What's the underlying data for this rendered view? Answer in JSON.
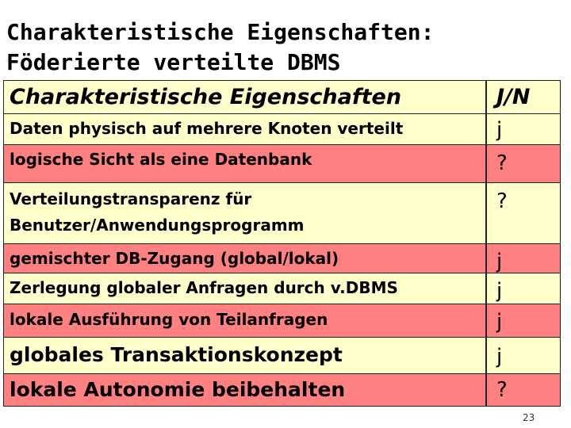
{
  "slide": {
    "title_line1": "Charakteristische Eigenschaften:",
    "title_line2": "Föderierte verteilte DBMS",
    "page_number": "23"
  },
  "table": {
    "header": {
      "col1": "Charakteristische Eigenschaften",
      "col2": "J/N"
    },
    "rows": [
      {
        "lines": [
          "Daten physisch auf mehrere Knoten verteilt"
        ],
        "value": "j",
        "color": "yellow"
      },
      {
        "lines": [
          "logische Sicht als eine Datenbank"
        ],
        "value": "?",
        "color": "red"
      },
      {
        "lines": [
          "Verteilungstransparenz für",
          "Benutzer/Anwendungsprogramm"
        ],
        "value": "?",
        "color": "yellow"
      },
      {
        "lines": [
          "gemischter DB-Zugang (global/lokal)"
        ],
        "value": "j",
        "color": "red"
      },
      {
        "lines": [
          "Zerlegung globaler Anfragen durch v.DBMS"
        ],
        "value": "j",
        "color": "yellow"
      },
      {
        "lines": [
          "lokale Ausführung von Teilanfragen"
        ],
        "value": "j",
        "color": "red"
      },
      {
        "lines": [
          "globales Transaktionskonzept"
        ],
        "value": "j",
        "color": "yellow"
      },
      {
        "lines": [
          "lokale Autonomie beibehalten"
        ],
        "value": "?",
        "color": "red"
      }
    ]
  },
  "colors": {
    "yellow": "#ffffcc",
    "red": "#ff8080"
  }
}
